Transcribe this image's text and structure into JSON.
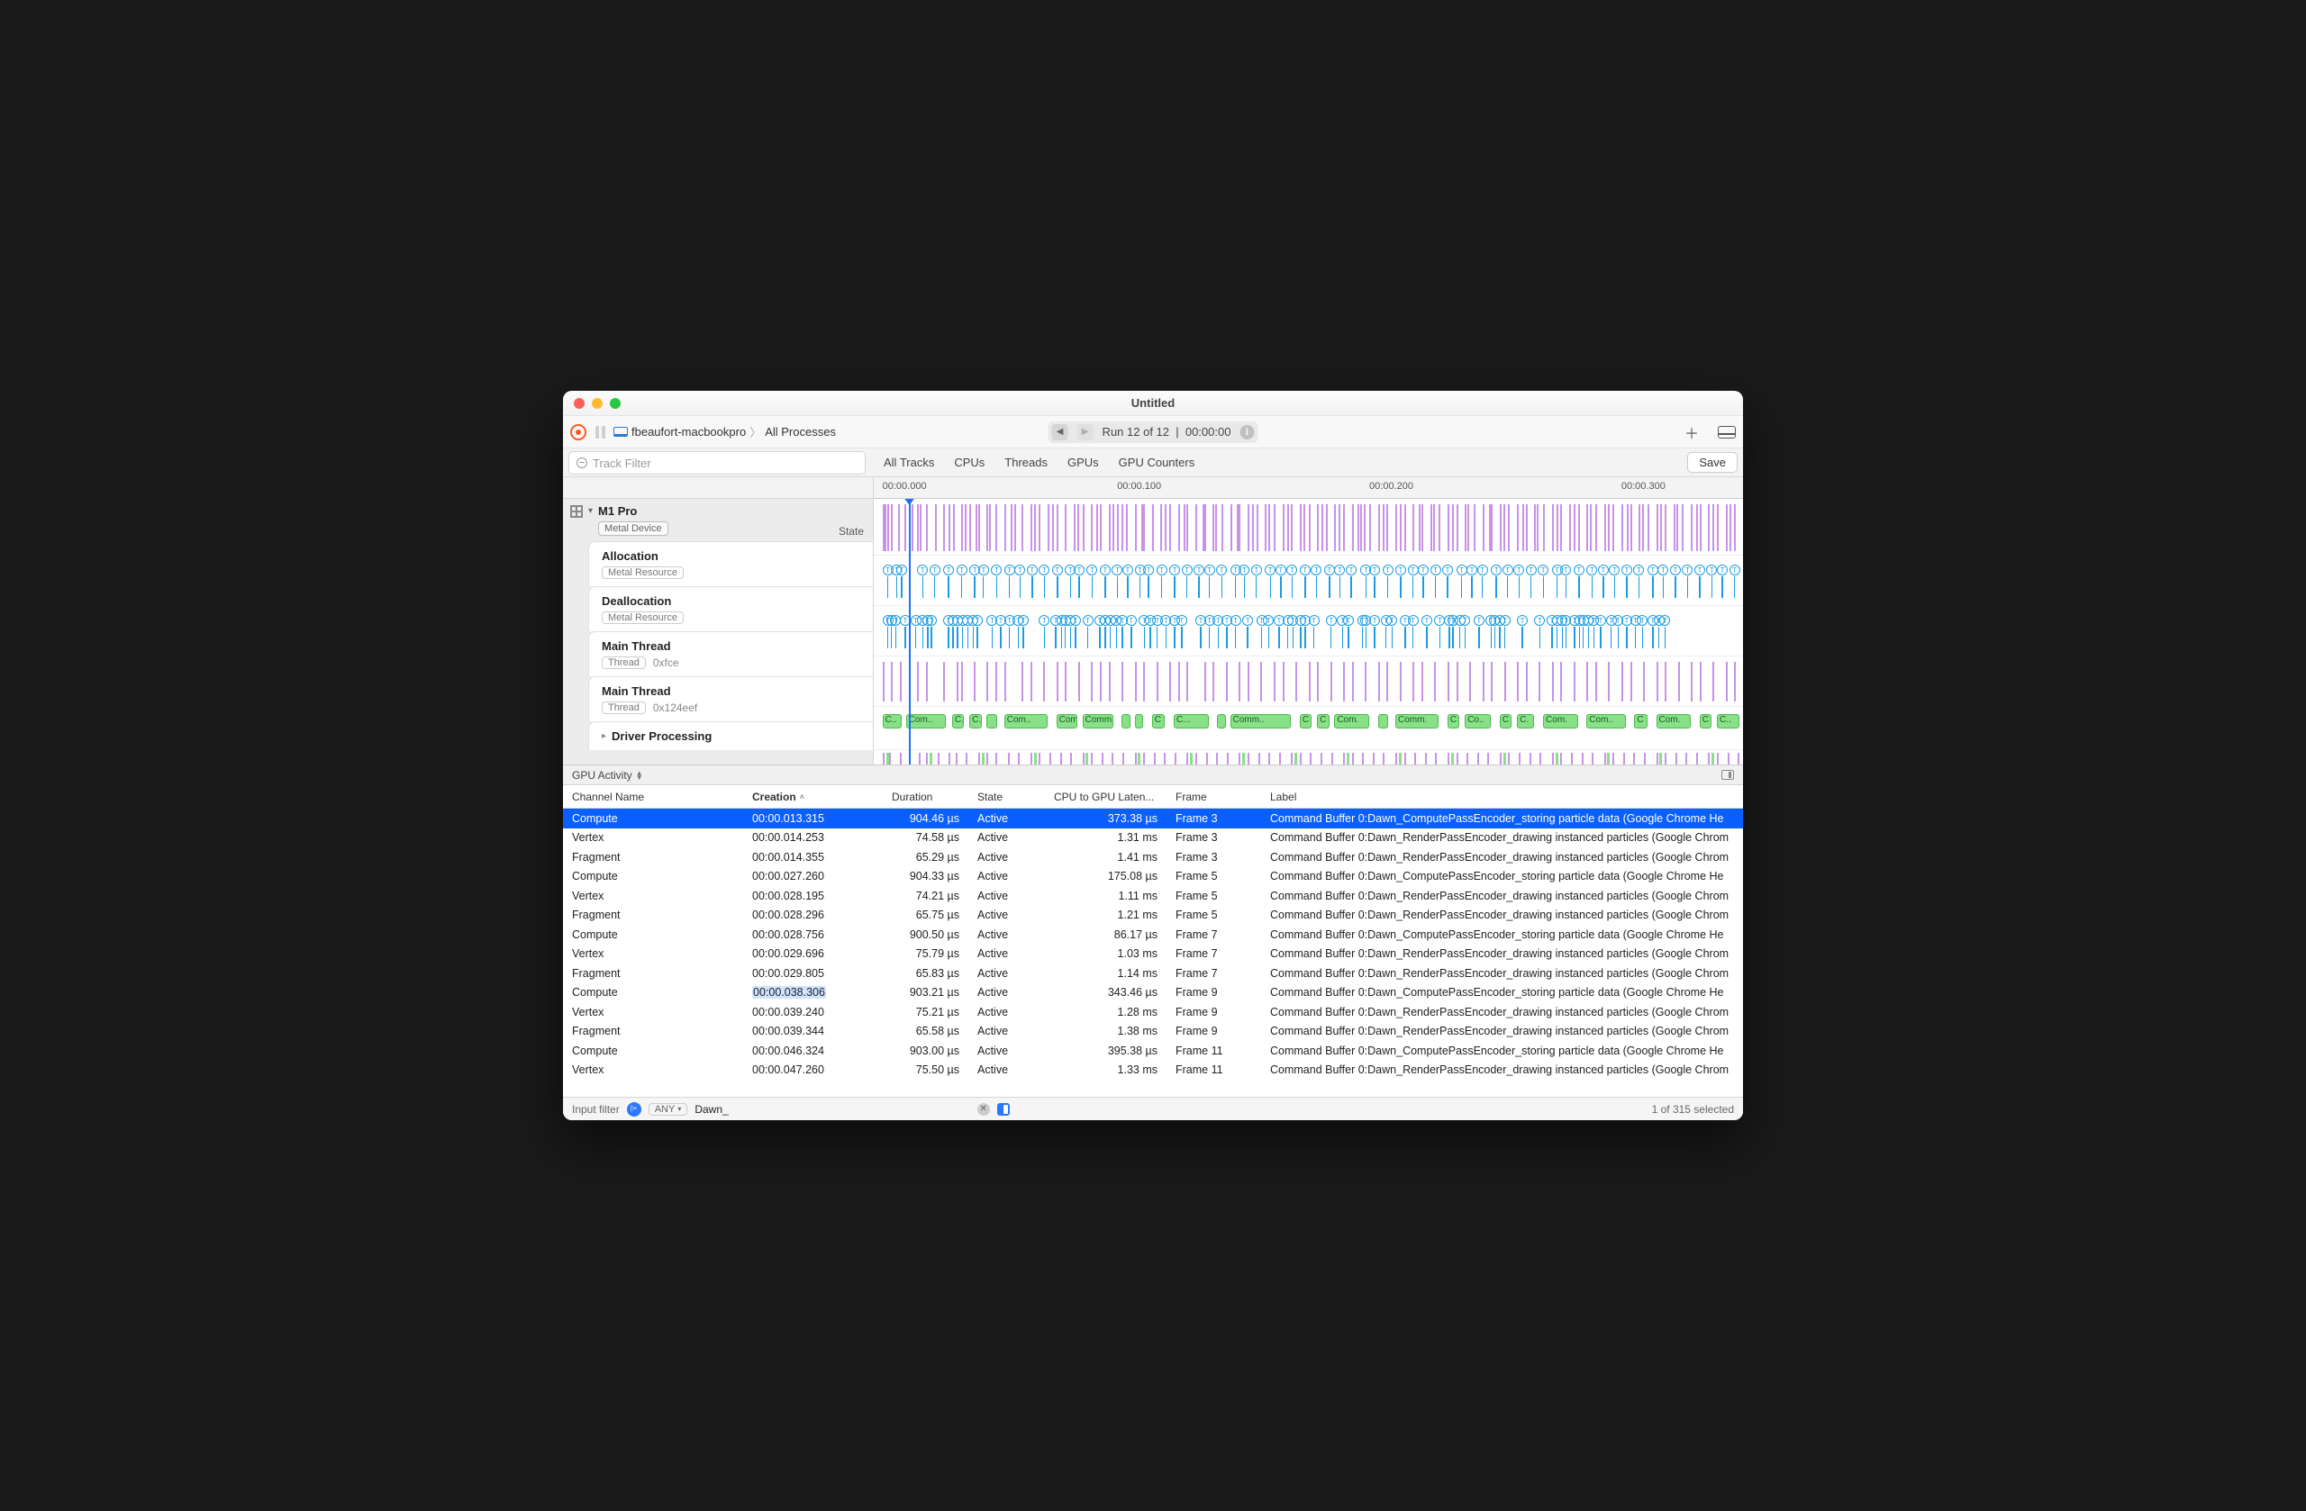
{
  "window": {
    "title": "Untitled"
  },
  "toolbar": {
    "machine": "fbeaufort-macbookpro",
    "breadcrumb_target": "All Processes",
    "run_text": "Run 12 of 12",
    "run_time": "00:00:00"
  },
  "filterbar": {
    "placeholder": "Track Filter",
    "tabs": [
      "All Tracks",
      "CPUs",
      "Threads",
      "GPUs",
      "GPU Counters"
    ],
    "save_label": "Save"
  },
  "ruler": {
    "ticks": [
      {
        "label": "00:00.000",
        "pct": 1
      },
      {
        "label": "00:00.100",
        "pct": 28
      },
      {
        "label": "00:00.200",
        "pct": 57
      },
      {
        "label": "00:00.300",
        "pct": 86
      }
    ]
  },
  "playhead_pct": 4,
  "left": {
    "device_name": "M1 Pro",
    "device_tag": "Metal Device",
    "state_label": "State",
    "tracks": [
      {
        "name": "Allocation",
        "tag": "Metal Resource"
      },
      {
        "name": "Deallocation",
        "tag": "Metal Resource"
      },
      {
        "name": "Main Thread",
        "tag": "Thread",
        "sub": "0xfce"
      },
      {
        "name": "Main Thread",
        "tag": "Thread",
        "sub": "0x124eef"
      }
    ],
    "driver_label": "Driver Processing"
  },
  "timeline": {
    "colors": {
      "purple": "#c792e8",
      "blue": "#1b9be0",
      "green": "#88e088",
      "green_border": "#4bbb4b"
    },
    "state_bars_pct": [
      1,
      1.2,
      1.6,
      2,
      2.8,
      3.5,
      4.4,
      5,
      5.3,
      6,
      7,
      8,
      8.6,
      9.1,
      10,
      10.5,
      11,
      11.7,
      12,
      13,
      13.3,
      14,
      15,
      15.8,
      16.2,
      17,
      18,
      18.4,
      19,
      20,
      20.5,
      21,
      22,
      23,
      23.4,
      24,
      25,
      25.6,
      26,
      27,
      27.5,
      28,
      28.5,
      29,
      30,
      30.8,
      31,
      32,
      33,
      33.5,
      34,
      35,
      35.6,
      36,
      37,
      37.8,
      38,
      39,
      39.3,
      40,
      41,
      41.8,
      42,
      43,
      43.5,
      44,
      45,
      45.4,
      46,
      47,
      47.6,
      48,
      49,
      49.4,
      50,
      51,
      51.5,
      52,
      53,
      53.5,
      54,
      55,
      55.6,
      56,
      56.4,
      57,
      58,
      58.5,
      59,
      60,
      60.5,
      61,
      62,
      62.7,
      63,
      64,
      64.4,
      65,
      66,
      66.5,
      67,
      68,
      68.3,
      69,
      70,
      70.8,
      71,
      72,
      72.4,
      73,
      74,
      74.6,
      75,
      76,
      76.3,
      77,
      78,
      78.5,
      79,
      80,
      80.5,
      81,
      82,
      82.4,
      83,
      84,
      84.5,
      85,
      86,
      86.6,
      87,
      88,
      88.4,
      89,
      90,
      90.5,
      91,
      92,
      92.3,
      93,
      94,
      94.6,
      95,
      96,
      96.5,
      97,
      98,
      98.4,
      99
    ],
    "alloc_pct": [
      1,
      2,
      2.6,
      5,
      6.4,
      8,
      9.5,
      11,
      12,
      13.5,
      15,
      16.2,
      17.6,
      19,
      20.5,
      22,
      23,
      24.5,
      26,
      27.4,
      28.6,
      30,
      31,
      32.5,
      34,
      35.4,
      36.8,
      38,
      39.4,
      41,
      42,
      43.4,
      45,
      46.2,
      47.5,
      49,
      50.3,
      51.8,
      53,
      54.3,
      56,
      57,
      58.5,
      60,
      61.4,
      62.6,
      64,
      65.4,
      67,
      68.2,
      69.4,
      71,
      72.3,
      73.6,
      75,
      76.4,
      78,
      79,
      80.5,
      82,
      83.3,
      84.6,
      86,
      87.4,
      89,
      90.2,
      91.6,
      93,
      94.4,
      95.8,
      97,
      98.4
    ],
    "dealloc_pct": [
      1,
      1.4,
      1.9,
      3,
      4.2,
      5,
      5.6,
      6,
      8,
      8.5,
      9,
      9.6,
      10.2,
      10.8,
      11.3,
      13,
      14,
      15,
      16,
      16.6,
      19,
      20.3,
      21,
      21.4,
      22,
      22.6,
      24,
      25.4,
      26,
      26.6,
      27.3,
      28,
      29,
      30.5,
      31.2,
      32,
      33,
      34,
      34.8,
      37,
      38,
      39,
      40,
      41,
      42.4,
      44,
      44.8,
      46,
      47,
      47.6,
      48.5,
      49,
      50,
      52,
      53.3,
      54,
      55.6,
      56,
      57,
      58.3,
      59,
      60.5,
      61.4,
      63,
      64.5,
      65.6,
      66,
      66.8,
      67.4,
      69,
      70.4,
      70.8,
      71.4,
      72,
      74,
      76,
      77.4,
      78,
      78.6,
      79,
      80,
      80.6,
      81,
      81.6,
      82.2,
      83,
      84.2,
      85,
      86,
      87,
      87.8,
      89,
      89.7,
      90.4
    ],
    "mt1_bars_pct": [
      1,
      2,
      3,
      5,
      6,
      8,
      9.5,
      10,
      11.5,
      13,
      14,
      15,
      17,
      18,
      19.5,
      21,
      22,
      23.5,
      25,
      26,
      27,
      28.5,
      30,
      31,
      32.5,
      34,
      35,
      36,
      38,
      39,
      40.5,
      42,
      43,
      44.5,
      46,
      47,
      48.5,
      50,
      51,
      52.5,
      54,
      55,
      56.5,
      58,
      59,
      60.5,
      62,
      63,
      64.5,
      66,
      67,
      68.5,
      70,
      71,
      72.5,
      74,
      75,
      76.5,
      78,
      79,
      80.5,
      82,
      83,
      84.5,
      86,
      87,
      88.5,
      90,
      91,
      92.5,
      94,
      95,
      96.5,
      98,
      99
    ],
    "green_blocks": [
      {
        "l": 1,
        "w": 2.2,
        "t": "C.."
      },
      {
        "l": 3.7,
        "w": 4.6,
        "t": "Com.."
      },
      {
        "l": 9,
        "w": 1.4,
        "t": "C.."
      },
      {
        "l": 11,
        "w": 1.4,
        "t": "C.."
      },
      {
        "l": 13,
        "w": 1.2,
        "t": ""
      },
      {
        "l": 15,
        "w": 5,
        "t": "Com.."
      },
      {
        "l": 21,
        "w": 2.4,
        "t": "Com.."
      },
      {
        "l": 24,
        "w": 3.6,
        "t": "Comm.."
      },
      {
        "l": 28.5,
        "w": 1,
        "t": ""
      },
      {
        "l": 30,
        "w": 1,
        "t": ""
      },
      {
        "l": 32,
        "w": 1.5,
        "t": "C"
      },
      {
        "l": 34.5,
        "w": 4,
        "t": "C..."
      },
      {
        "l": 39.5,
        "w": 1,
        "t": ""
      },
      {
        "l": 41,
        "w": 7,
        "t": "Comm.."
      },
      {
        "l": 49,
        "w": 1.4,
        "t": "C"
      },
      {
        "l": 51,
        "w": 1.4,
        "t": "C"
      },
      {
        "l": 53,
        "w": 4,
        "t": "Com."
      },
      {
        "l": 58,
        "w": 1.2,
        "t": ""
      },
      {
        "l": 60,
        "w": 5,
        "t": "Comm."
      },
      {
        "l": 66,
        "w": 1.4,
        "t": "C"
      },
      {
        "l": 68,
        "w": 3,
        "t": "Co.."
      },
      {
        "l": 72,
        "w": 1.4,
        "t": "C"
      },
      {
        "l": 74,
        "w": 2,
        "t": "C."
      },
      {
        "l": 77,
        "w": 4,
        "t": "Com."
      },
      {
        "l": 82,
        "w": 4.5,
        "t": "Com.."
      },
      {
        "l": 87.5,
        "w": 1.5,
        "t": "C"
      },
      {
        "l": 90,
        "w": 4,
        "t": "Com."
      },
      {
        "l": 95,
        "w": 1.4,
        "t": "C"
      },
      {
        "l": 97,
        "w": 2.6,
        "t": "C.."
      }
    ],
    "drv_bars_pct": [
      1,
      1.8,
      3,
      4,
      5.2,
      6,
      7.4,
      8.6,
      9.4,
      10.6,
      12,
      13,
      14,
      15.4,
      16.6,
      18,
      19,
      20.2,
      21.4,
      22.6,
      24,
      25,
      26.2,
      27.4,
      28.6,
      30,
      31,
      32.2,
      33.4,
      34.6,
      36,
      37,
      38.2,
      39.4,
      40.6,
      42,
      43,
      44.2,
      45.4,
      46.6,
      48,
      49,
      50.2,
      51.4,
      52.6,
      54,
      55,
      56.2,
      57.4,
      58.6,
      60,
      61,
      62.2,
      63.4,
      64.6,
      66,
      67,
      68.2,
      69.4,
      70.6,
      72,
      73,
      74.2,
      75.4,
      76.6,
      78,
      79,
      80.2,
      81.4,
      82.6,
      84,
      85,
      86.2,
      87.4,
      88.6,
      90,
      91,
      92.2,
      93.4,
      94.6,
      96,
      97,
      98.2,
      99.4
    ]
  },
  "panel": {
    "selector_label": "GPU Activity"
  },
  "table": {
    "columns": [
      "Channel Name",
      "Creation",
      "Duration",
      "State",
      "CPU to GPU Laten...",
      "Frame",
      "Label"
    ],
    "sort_column": 1,
    "selected_row": 0,
    "highlight_cell": {
      "row": 9,
      "col": 1
    },
    "rows": [
      [
        "Compute",
        "00:00.013.315",
        "904.46 µs",
        "Active",
        "373.38 µs",
        "Frame 3",
        "Command Buffer 0:Dawn_ComputePassEncoder_storing particle data   (Google Chrome He"
      ],
      [
        "Vertex",
        "00:00.014.253",
        "74.58 µs",
        "Active",
        "1.31 ms",
        "Frame 3",
        "Command Buffer 0:Dawn_RenderPassEncoder_drawing instanced particles   (Google Chrom"
      ],
      [
        "Fragment",
        "00:00.014.355",
        "65.29 µs",
        "Active",
        "1.41 ms",
        "Frame 3",
        "Command Buffer 0:Dawn_RenderPassEncoder_drawing instanced particles   (Google Chrom"
      ],
      [
        "Compute",
        "00:00.027.260",
        "904.33 µs",
        "Active",
        "175.08 µs",
        "Frame 5",
        "Command Buffer 0:Dawn_ComputePassEncoder_storing particle data   (Google Chrome He"
      ],
      [
        "Vertex",
        "00:00.028.195",
        "74.21 µs",
        "Active",
        "1.11 ms",
        "Frame 5",
        "Command Buffer 0:Dawn_RenderPassEncoder_drawing instanced particles   (Google Chrom"
      ],
      [
        "Fragment",
        "00:00.028.296",
        "65.75 µs",
        "Active",
        "1.21 ms",
        "Frame 5",
        "Command Buffer 0:Dawn_RenderPassEncoder_drawing instanced particles   (Google Chrom"
      ],
      [
        "Compute",
        "00:00.028.756",
        "900.50 µs",
        "Active",
        "86.17 µs",
        "Frame 7",
        "Command Buffer 0:Dawn_ComputePassEncoder_storing particle data   (Google Chrome He"
      ],
      [
        "Vertex",
        "00:00.029.696",
        "75.79 µs",
        "Active",
        "1.03 ms",
        "Frame 7",
        "Command Buffer 0:Dawn_RenderPassEncoder_drawing instanced particles   (Google Chrom"
      ],
      [
        "Fragment",
        "00:00.029.805",
        "65.83 µs",
        "Active",
        "1.14 ms",
        "Frame 7",
        "Command Buffer 0:Dawn_RenderPassEncoder_drawing instanced particles   (Google Chrom"
      ],
      [
        "Compute",
        "00:00.038.306",
        "903.21 µs",
        "Active",
        "343.46 µs",
        "Frame 9",
        "Command Buffer 0:Dawn_ComputePassEncoder_storing particle data   (Google Chrome He"
      ],
      [
        "Vertex",
        "00:00.039.240",
        "75.21 µs",
        "Active",
        "1.28 ms",
        "Frame 9",
        "Command Buffer 0:Dawn_RenderPassEncoder_drawing instanced particles   (Google Chrom"
      ],
      [
        "Fragment",
        "00:00.039.344",
        "65.58 µs",
        "Active",
        "1.38 ms",
        "Frame 9",
        "Command Buffer 0:Dawn_RenderPassEncoder_drawing instanced particles   (Google Chrom"
      ],
      [
        "Compute",
        "00:00.046.324",
        "903.00 µs",
        "Active",
        "395.38 µs",
        "Frame 11",
        "Command Buffer 0:Dawn_ComputePassEncoder_storing particle data   (Google Chrome He"
      ],
      [
        "Vertex",
        "00:00.047.260",
        "75.50 µs",
        "Active",
        "1.33 ms",
        "Frame 11",
        "Command Buffer 0:Dawn_RenderPassEncoder_drawing instanced particles   (Google Chrom"
      ]
    ]
  },
  "footer": {
    "label": "Input filter",
    "any_label": "ANY",
    "filter_text": "Dawn_",
    "status": "1 of 315 selected"
  }
}
